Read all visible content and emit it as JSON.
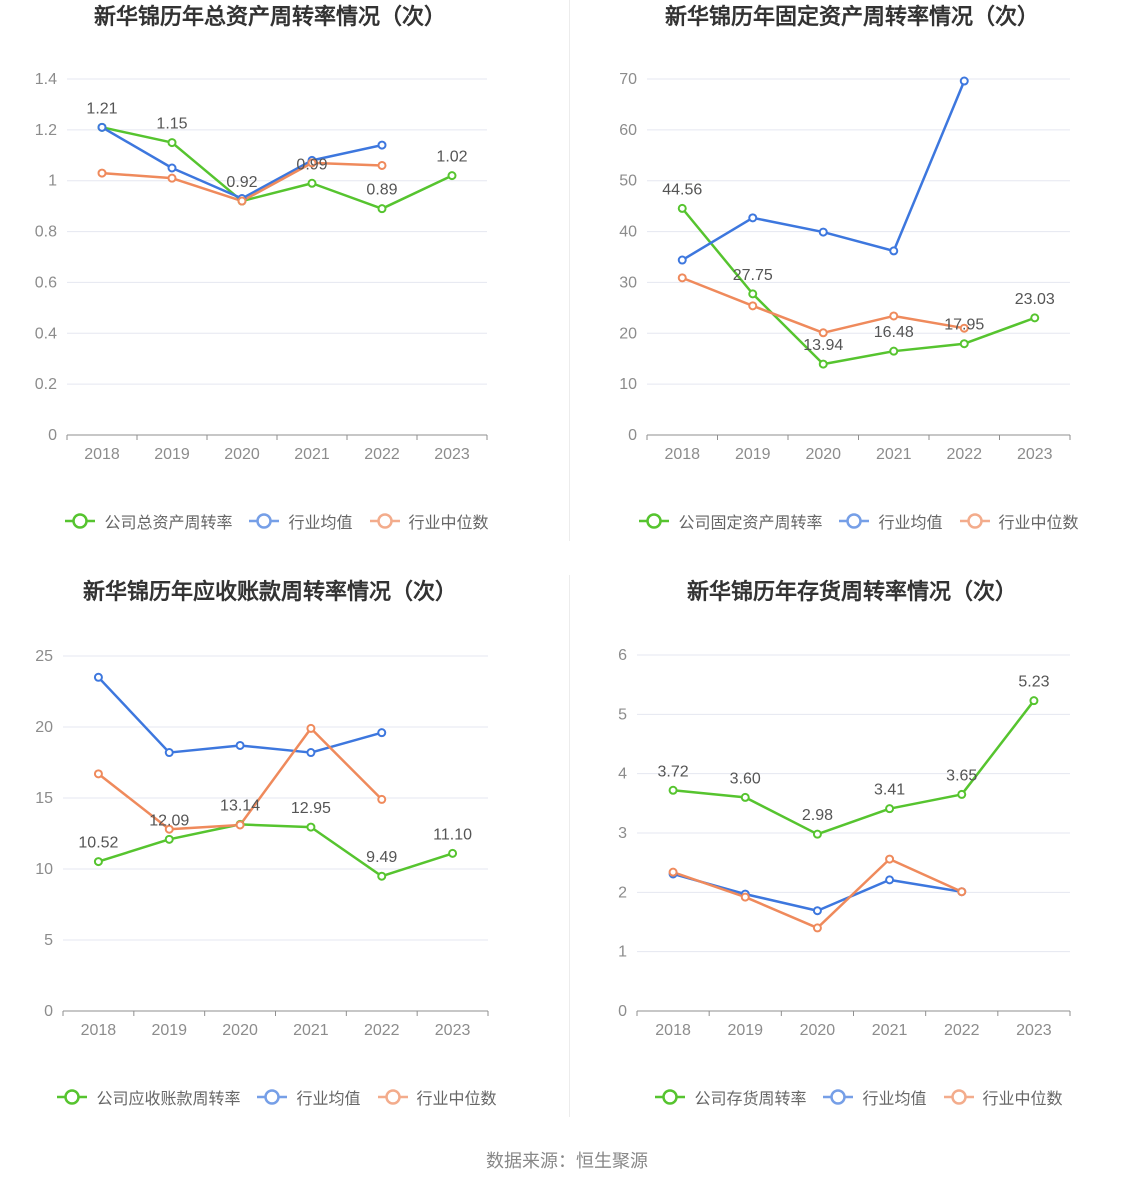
{
  "chart_data": [
    {
      "type": "line",
      "title": "新华锦历年总资产周转率情况（次）",
      "categories": [
        "2018",
        "2019",
        "2020",
        "2021",
        "2022",
        "2023"
      ],
      "ylim": [
        0,
        1.4
      ],
      "yticks": [
        0,
        0.2,
        0.4,
        0.6,
        0.8,
        1,
        1.2,
        1.4
      ],
      "grid": true,
      "legend_position": "bottom",
      "series": [
        {
          "name": "公司总资产周转率",
          "color": "#56c42f",
          "values": [
            1.21,
            1.15,
            0.92,
            0.99,
            0.89,
            1.02
          ],
          "data_labels": [
            "1.21",
            "1.15",
            "0.92",
            "0.99",
            "0.89",
            "1.02"
          ]
        },
        {
          "name": "行业均值",
          "color": "#3d77de",
          "values": [
            1.21,
            1.05,
            0.93,
            1.08,
            1.14,
            null
          ]
        },
        {
          "name": "行业中位数",
          "color": "#ef8a5c",
          "values": [
            1.03,
            1.01,
            0.92,
            1.07,
            1.06,
            null
          ]
        }
      ]
    },
    {
      "type": "line",
      "title": "新华锦历年固定资产周转率情况（次）",
      "categories": [
        "2018",
        "2019",
        "2020",
        "2021",
        "2022",
        "2023"
      ],
      "ylim": [
        0,
        70
      ],
      "yticks": [
        0,
        10,
        20,
        30,
        40,
        50,
        60,
        70
      ],
      "grid": true,
      "legend_position": "bottom",
      "series": [
        {
          "name": "公司固定资产周转率",
          "color": "#56c42f",
          "values": [
            44.56,
            27.75,
            13.94,
            16.48,
            17.95,
            23.03
          ],
          "data_labels": [
            "44.56",
            "27.75",
            "13.94",
            "16.48",
            "17.95",
            "23.03"
          ]
        },
        {
          "name": "行业均值",
          "color": "#3d77de",
          "values": [
            34.4,
            42.7,
            39.9,
            36.2,
            69.6,
            null
          ]
        },
        {
          "name": "行业中位数",
          "color": "#ef8a5c",
          "values": [
            30.9,
            25.4,
            20.1,
            23.4,
            21.0,
            null
          ]
        }
      ]
    },
    {
      "type": "line",
      "title": "新华锦历年应收账款周转率情况（次）",
      "categories": [
        "2018",
        "2019",
        "2020",
        "2021",
        "2022",
        "2023"
      ],
      "ylim": [
        0,
        25
      ],
      "yticks": [
        0,
        5,
        10,
        15,
        20,
        25
      ],
      "grid": true,
      "legend_position": "bottom",
      "series": [
        {
          "name": "公司应收账款周转率",
          "color": "#56c42f",
          "values": [
            10.52,
            12.09,
            13.14,
            12.95,
            9.49,
            11.1
          ],
          "data_labels": [
            "10.52",
            "12.09",
            "13.14",
            "12.95",
            "9.49",
            "11.10"
          ]
        },
        {
          "name": "行业均值",
          "color": "#3d77de",
          "values": [
            23.5,
            18.2,
            18.7,
            18.2,
            19.6,
            null
          ]
        },
        {
          "name": "行业中位数",
          "color": "#ef8a5c",
          "values": [
            16.7,
            12.8,
            13.1,
            19.9,
            14.9,
            null
          ]
        }
      ]
    },
    {
      "type": "line",
      "title": "新华锦历年存货周转率情况（次）",
      "categories": [
        "2018",
        "2019",
        "2020",
        "2021",
        "2022",
        "2023"
      ],
      "ylim": [
        0,
        6
      ],
      "yticks": [
        0,
        1,
        2,
        3,
        4,
        5,
        6
      ],
      "grid": true,
      "legend_position": "bottom",
      "series": [
        {
          "name": "公司存货周转率",
          "color": "#56c42f",
          "values": [
            3.72,
            3.6,
            2.98,
            3.41,
            3.65,
            5.23
          ],
          "data_labels": [
            "3.72",
            "3.60",
            "2.98",
            "3.41",
            "3.65",
            "5.23"
          ]
        },
        {
          "name": "行业均值",
          "color": "#3d77de",
          "values": [
            2.31,
            1.97,
            1.69,
            2.21,
            2.01,
            null
          ]
        },
        {
          "name": "行业中位数",
          "color": "#ef8a5c",
          "values": [
            2.34,
            1.92,
            1.4,
            2.56,
            2.01,
            null
          ]
        }
      ]
    }
  ],
  "footer": {
    "source": "数据来源：恒生聚源"
  }
}
